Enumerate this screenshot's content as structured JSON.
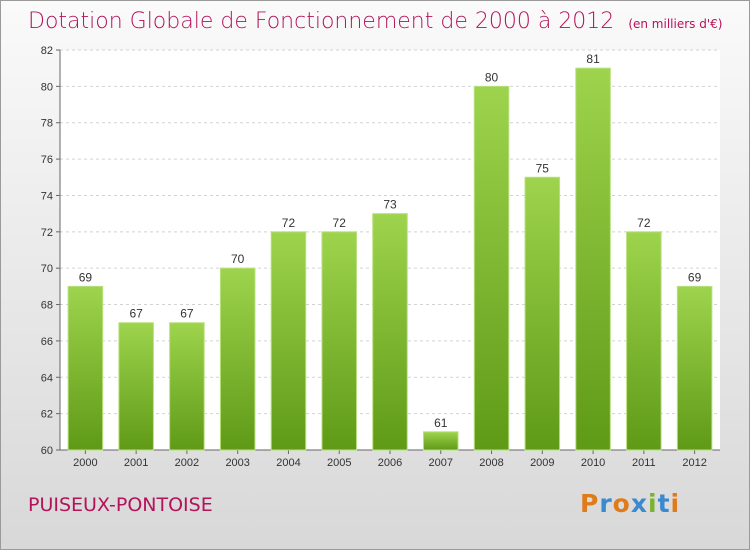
{
  "header": {
    "title": "Dotation Globale de Fonctionnement de 2000 à 2012",
    "subtitle": "(en milliers d'€)"
  },
  "footer": {
    "city": "PUISEUX-PONTOISE",
    "logo": "Proxiti"
  },
  "colors": {
    "title": "#b4125a",
    "bar_light": "#9ed44d",
    "bar_dark": "#5f9a17",
    "logo_letters": [
      "#e07b1b",
      "#3a8ad0",
      "#e07b1b",
      "#3a8ad0",
      "#7ab32e",
      "#3a8ad0",
      "#e07b1b"
    ]
  },
  "chart_data": {
    "type": "bar",
    "categories": [
      "2000",
      "2001",
      "2002",
      "2003",
      "2004",
      "2005",
      "2006",
      "2007",
      "2008",
      "2009",
      "2010",
      "2011",
      "2012"
    ],
    "values": [
      69,
      67,
      67,
      70,
      72,
      72,
      73,
      61,
      80,
      75,
      81,
      72,
      69
    ],
    "ylim": [
      60,
      82
    ],
    "yticks": [
      60,
      62,
      64,
      66,
      68,
      70,
      72,
      74,
      76,
      78,
      80,
      82
    ],
    "grid": true,
    "title": "Dotation Globale de Fonctionnement de 2000 à 2012",
    "subtitle": "(en milliers d'€)",
    "xlabel": "",
    "ylabel": ""
  }
}
